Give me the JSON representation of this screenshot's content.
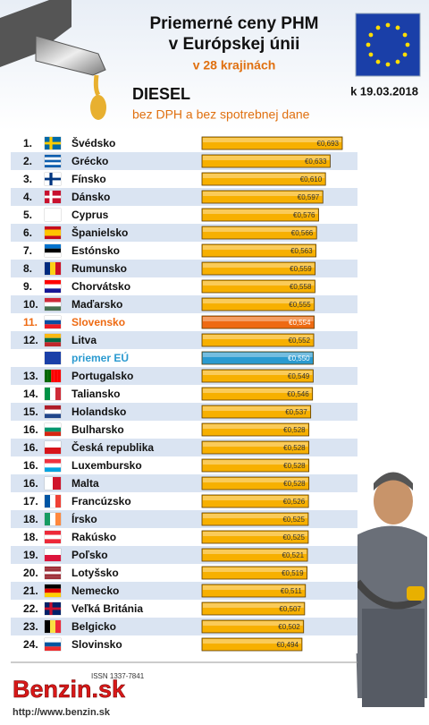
{
  "chart_data": {
    "type": "bar",
    "title": "Priemerné ceny PHM",
    "title_line2": "v Európskej únii",
    "subtitle": "v 28 krajinách",
    "date": "k 19.03.2018",
    "fuel": "DIESEL",
    "note": "bez DPH a bez spotrebnej dane",
    "ranks": [
      "1.",
      "2.",
      "3.",
      "4.",
      "5.",
      "6.",
      "7.",
      "8.",
      "9.",
      "10.",
      "11.",
      "12.",
      null,
      "13.",
      "14.",
      "15.",
      "16.",
      "16.",
      "16.",
      "16.",
      "17.",
      "18.",
      "18.",
      "19.",
      "20.",
      "21.",
      "22.",
      "23.",
      "24."
    ],
    "categories": [
      "Švédsko",
      "Grécko",
      "Fínsko",
      "Dánsko",
      "Cyprus",
      "Španielsko",
      "Estónsko",
      "Rumunsko",
      "Chorvátsko",
      "Maďarsko",
      "Slovensko",
      "Litva",
      "priemer EÚ",
      "Portugalsko",
      "Taliansko",
      "Holandsko",
      "Bulharsko",
      "Česká republika",
      "Luxembursko",
      "Malta",
      "Francúzsko",
      "Írsko",
      "Rakúsko",
      "Poľsko",
      "Lotyšsko",
      "Nemecko",
      "Veľká Británia",
      "Belgicko",
      "Slovinsko"
    ],
    "values": [
      0.693,
      0.633,
      0.61,
      0.597,
      0.576,
      0.566,
      0.563,
      0.559,
      0.558,
      0.555,
      0.554,
      0.552,
      0.55,
      0.549,
      0.546,
      0.537,
      0.528,
      0.528,
      0.528,
      0.528,
      0.526,
      0.525,
      0.525,
      0.521,
      0.519,
      0.511,
      0.507,
      0.502,
      0.494
    ],
    "value_labels": [
      "€0,693",
      "€0,633",
      "€0,610",
      "€0,597",
      "€0,576",
      "€0,566",
      "€0,563",
      "€0,559",
      "€0,558",
      "€0,555",
      "€0,554",
      "€0,552",
      "€0,550",
      "€0,549",
      "€0,546",
      "€0,537",
      "€0,528",
      "€0,528",
      "€0,528",
      "€0,528",
      "€0,526",
      "€0,525",
      "€0,525",
      "€0,521",
      "€0,519",
      "€0,511",
      "€0,507",
      "€0,502",
      "€0,494"
    ],
    "color": "#f7b000",
    "colors": [
      "#f7b000",
      "#f7b000",
      "#f7b000",
      "#f7b000",
      "#f7b000",
      "#f7b000",
      "#f7b000",
      "#f7b000",
      "#f7b000",
      "#f7b000",
      "#ee6a12",
      "#f7b000",
      "#2a9ad0",
      "#f7b000",
      "#f7b000",
      "#f7b000",
      "#f7b000",
      "#f7b000",
      "#f7b000",
      "#f7b000",
      "#f7b000",
      "#f7b000",
      "#f7b000",
      "#f7b000",
      "#f7b000",
      "#f7b000",
      "#f7b000",
      "#f7b000",
      "#f7b000"
    ],
    "issn": "ISSN 1337-7841",
    "logo": "Benzin.sk",
    "url": "http://www.benzin.sk"
  }
}
